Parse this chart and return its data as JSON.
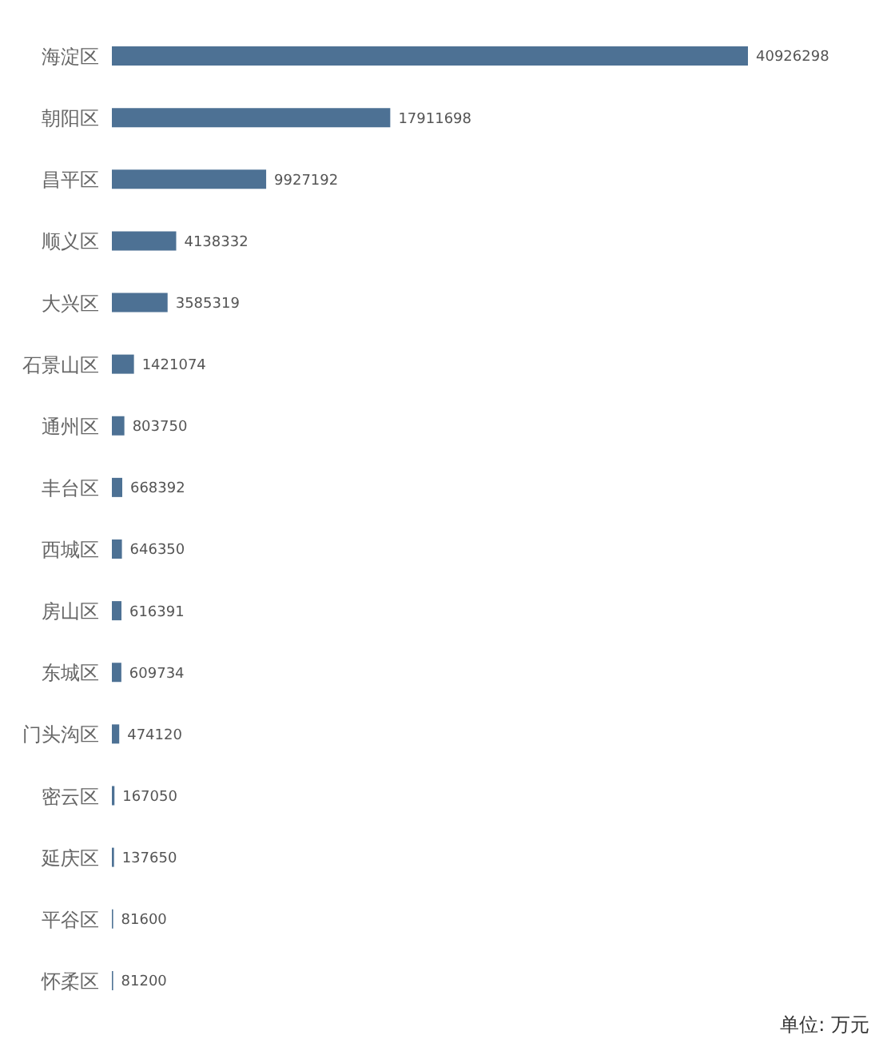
{
  "chart_data": {
    "type": "bar",
    "orientation": "horizontal",
    "categories": [
      "海淀区",
      "朝阳区",
      "昌平区",
      "顺义区",
      "大兴区",
      "石景山区",
      "通州区",
      "丰台区",
      "西城区",
      "房山区",
      "东城区",
      "门头沟区",
      "密云区",
      "延庆区",
      "平谷区",
      "怀柔区"
    ],
    "values": [
      40926298,
      17911698,
      9927192,
      4138332,
      3585319,
      1421074,
      803750,
      668392,
      646350,
      616391,
      609734,
      474120,
      167050,
      137650,
      81600,
      81200
    ],
    "color": "#4d7194",
    "data_labels": true,
    "annotations": [
      "单位: 万元"
    ]
  }
}
